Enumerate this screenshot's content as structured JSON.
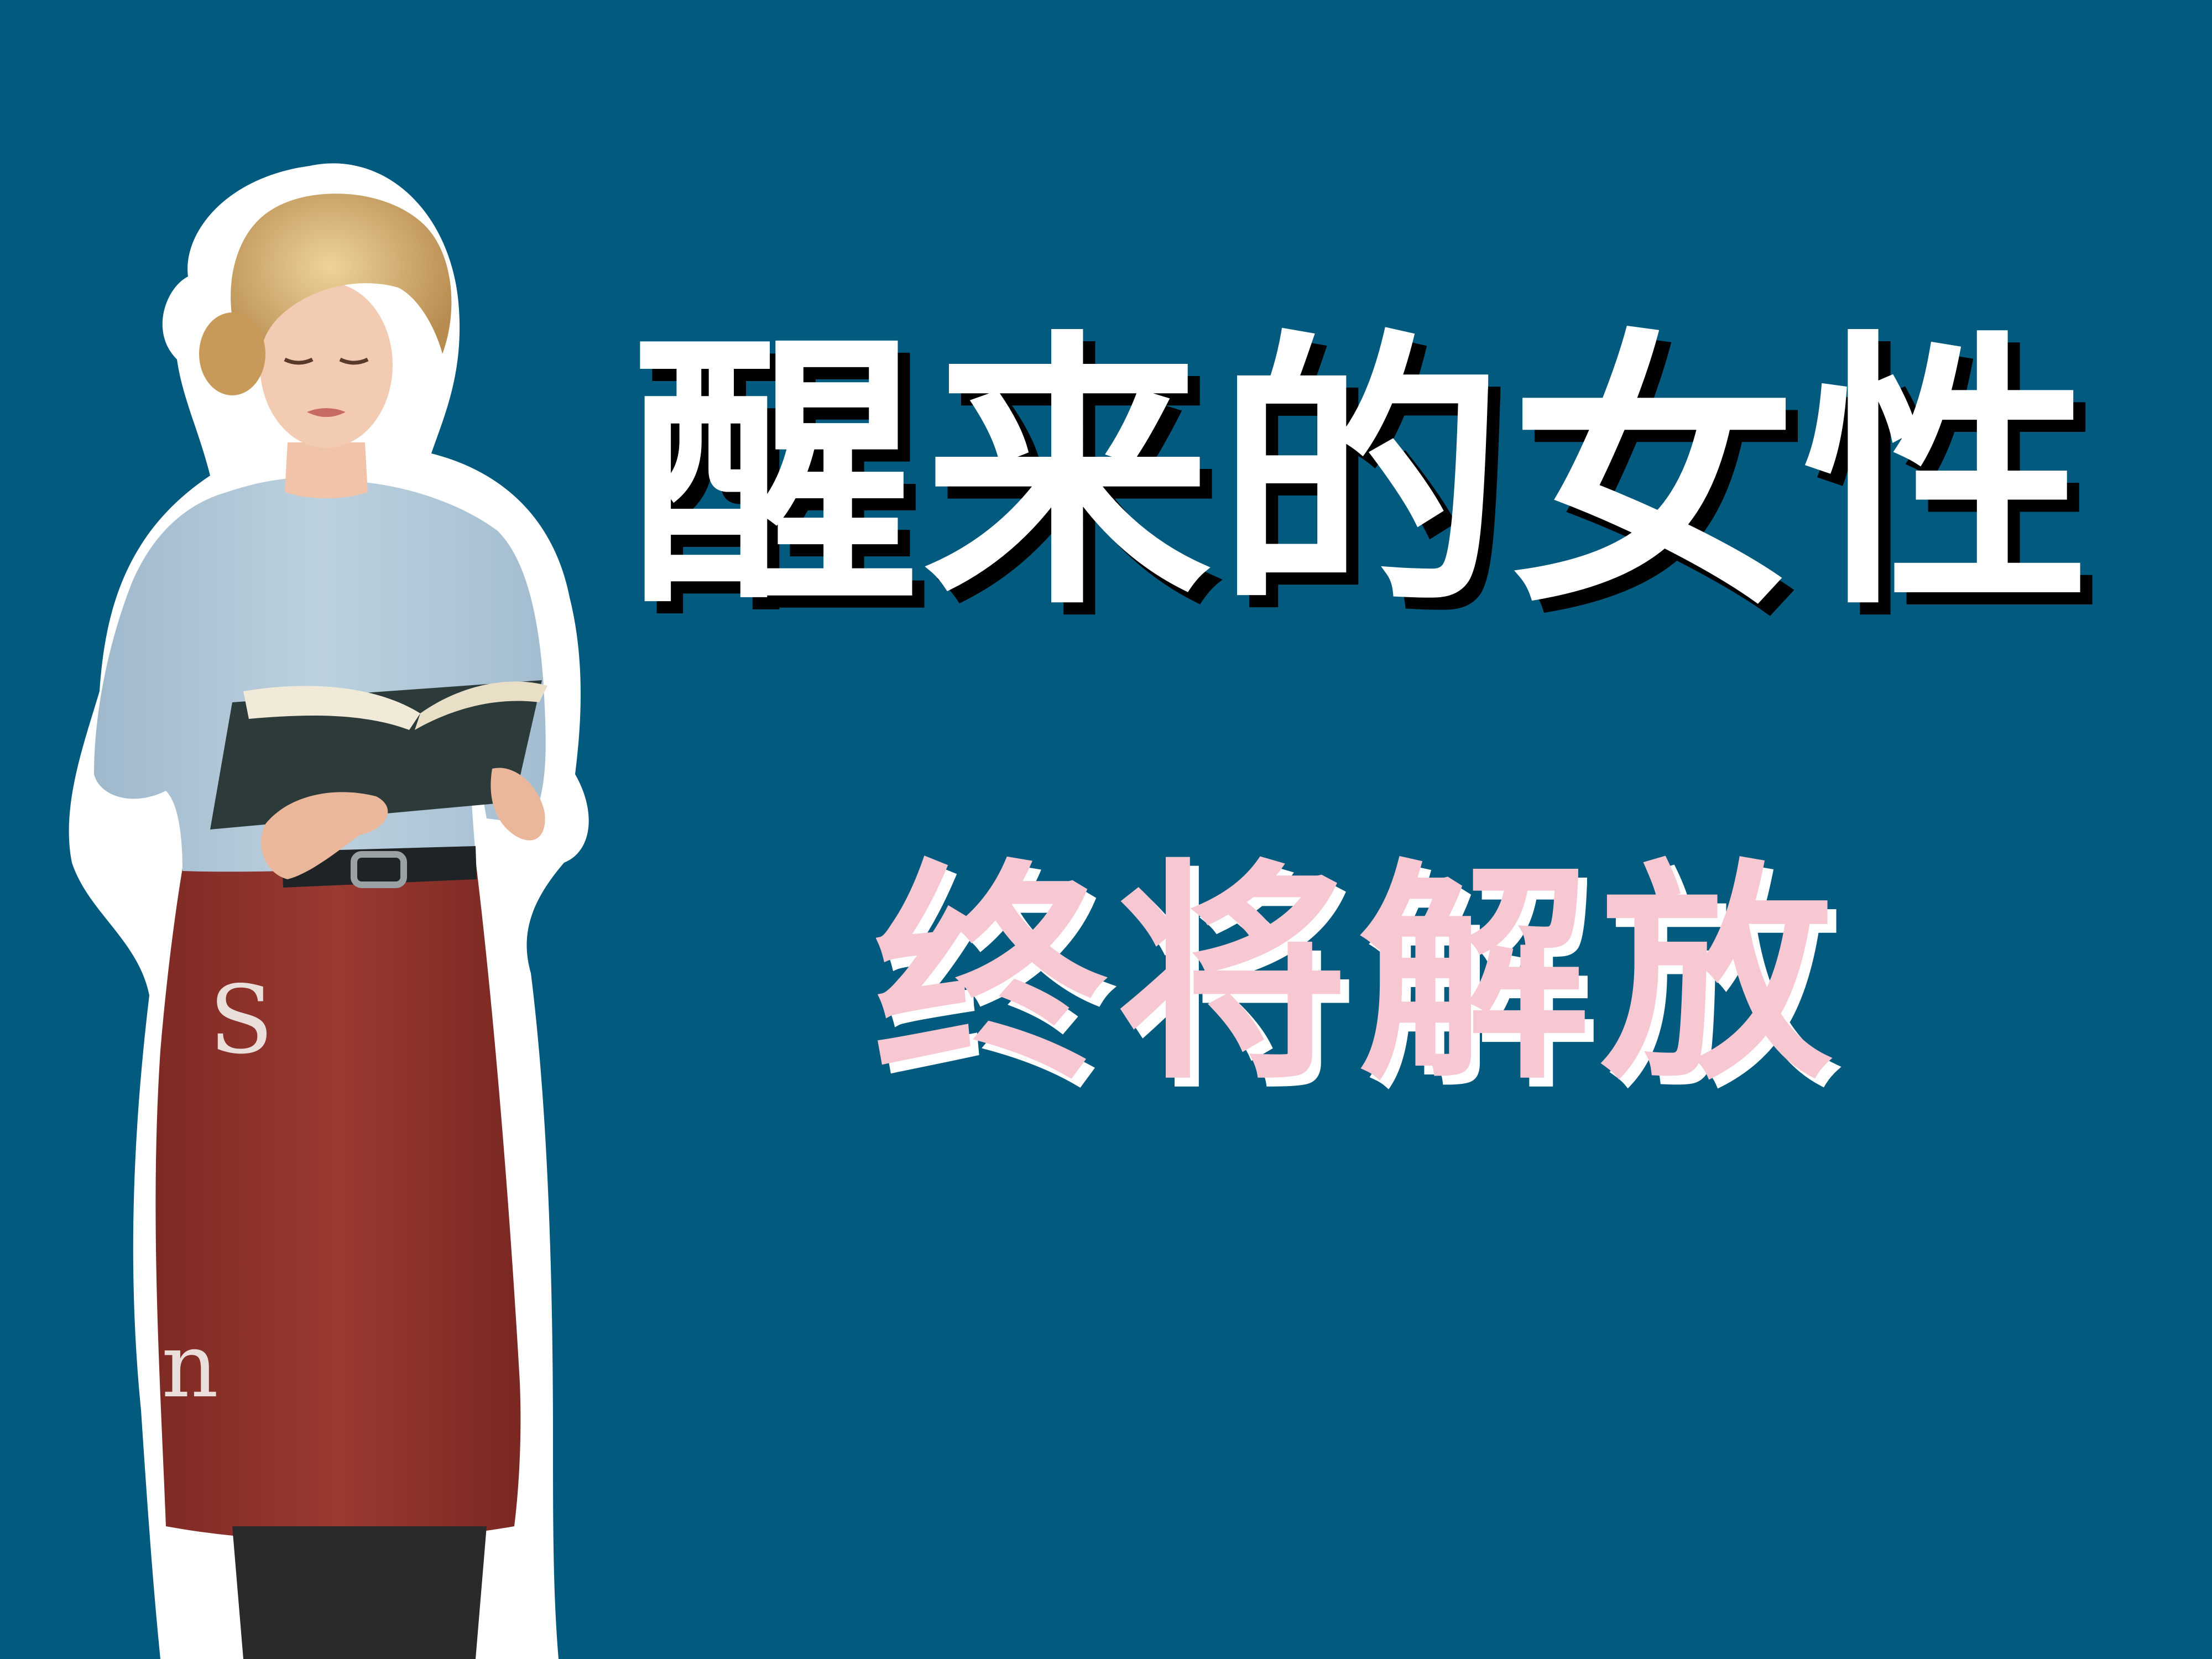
{
  "title": "醒来的女性",
  "subtitle": "终将解放",
  "background_letters": [
    "S",
    "n"
  ],
  "colors": {
    "background": "#035a7f",
    "title": "#ffffff",
    "title_shadow": "#000000",
    "subtitle": "#f7c7d2",
    "subtitle_shadow": "#ffffff"
  }
}
